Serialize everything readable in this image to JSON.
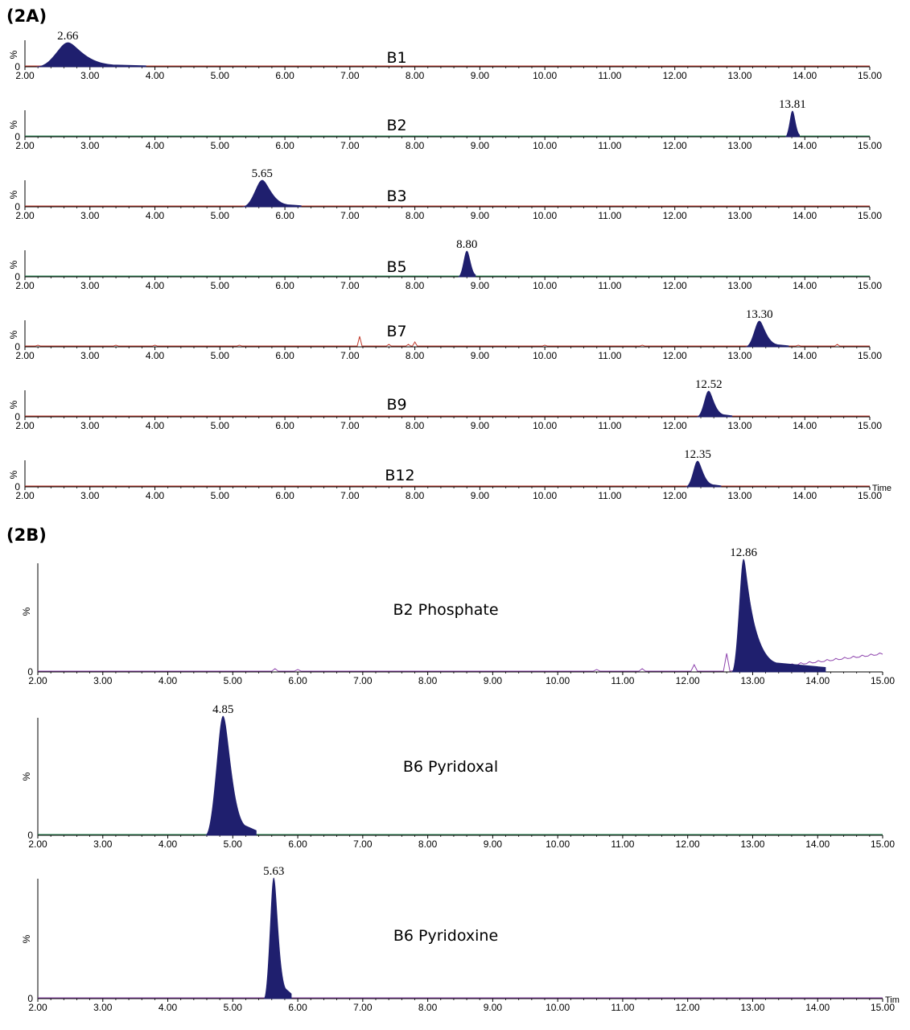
{
  "panels": [
    {
      "label": "(2A)"
    },
    {
      "label": "(2B)"
    }
  ],
  "chart_data": [
    {
      "type": "line",
      "panel": "(2A)",
      "series": [
        {
          "name": "B1",
          "peak": 2.66,
          "peak_label": "2.66"
        }
      ],
      "xlim": [
        2.0,
        15.0
      ],
      "ylabel": "%",
      "ytick": "0",
      "x_ticks": [
        "2.00",
        "3.00",
        "4.00",
        "5.00",
        "6.00",
        "7.00",
        "8.00",
        "9.00",
        "10.00",
        "11.00",
        "12.00",
        "13.00",
        "14.00",
        "15.00"
      ],
      "xlabel": ""
    },
    {
      "type": "line",
      "panel": "(2A)",
      "series": [
        {
          "name": "B2",
          "peak": 13.81,
          "peak_label": "13.81"
        }
      ],
      "xlim": [
        2.0,
        15.0
      ],
      "ylabel": "%",
      "ytick": "0",
      "x_ticks": [
        "2.00",
        "3.00",
        "4.00",
        "5.00",
        "6.00",
        "7.00",
        "8.00",
        "9.00",
        "10.00",
        "11.00",
        "12.00",
        "13.00",
        "14.00",
        "15.00"
      ],
      "xlabel": ""
    },
    {
      "type": "line",
      "panel": "(2A)",
      "series": [
        {
          "name": "B3",
          "peak": 5.65,
          "peak_label": "5.65"
        }
      ],
      "xlim": [
        2.0,
        15.0
      ],
      "ylabel": "%",
      "ytick": "0",
      "x_ticks": [
        "2.00",
        "3.00",
        "4.00",
        "5.00",
        "6.00",
        "7.00",
        "8.00",
        "9.00",
        "10.00",
        "11.00",
        "12.00",
        "13.00",
        "14.00",
        "15.00"
      ],
      "xlabel": ""
    },
    {
      "type": "line",
      "panel": "(2A)",
      "series": [
        {
          "name": "B5",
          "peak": 8.8,
          "peak_label": "8.80"
        }
      ],
      "xlim": [
        2.0,
        15.0
      ],
      "ylabel": "%",
      "ytick": "0",
      "x_ticks": [
        "2.00",
        "3.00",
        "4.00",
        "5.00",
        "6.00",
        "7.00",
        "8.00",
        "9.00",
        "10.00",
        "11.00",
        "12.00",
        "13.00",
        "14.00",
        "15.00"
      ],
      "xlabel": ""
    },
    {
      "type": "line",
      "panel": "(2A)",
      "series": [
        {
          "name": "B7",
          "peak": 13.3,
          "peak_label": "13.30"
        }
      ],
      "xlim": [
        2.0,
        15.0
      ],
      "ylabel": "%",
      "ytick": "0",
      "x_ticks": [
        "2.00",
        "3.00",
        "4.00",
        "5.00",
        "6.00",
        "7.00",
        "8.00",
        "9.00",
        "10.00",
        "11.00",
        "12.00",
        "13.00",
        "14.00",
        "15.00"
      ],
      "xlabel": ""
    },
    {
      "type": "line",
      "panel": "(2A)",
      "series": [
        {
          "name": "B9",
          "peak": 12.52,
          "peak_label": "12.52"
        }
      ],
      "xlim": [
        2.0,
        15.0
      ],
      "ylabel": "%",
      "ytick": "0",
      "x_ticks": [
        "2.00",
        "3.00",
        "4.00",
        "5.00",
        "6.00",
        "7.00",
        "8.00",
        "9.00",
        "10.00",
        "11.00",
        "12.00",
        "13.00",
        "14.00",
        "15.00"
      ],
      "xlabel": ""
    },
    {
      "type": "line",
      "panel": "(2A)",
      "series": [
        {
          "name": "B12",
          "peak": 12.35,
          "peak_label": "12.35"
        }
      ],
      "xlim": [
        2.0,
        15.0
      ],
      "ylabel": "%",
      "ytick": "0",
      "x_ticks": [
        "2.00",
        "3.00",
        "4.00",
        "5.00",
        "6.00",
        "7.00",
        "8.00",
        "9.00",
        "10.00",
        "11.00",
        "12.00",
        "13.00",
        "14.00",
        "15.00"
      ],
      "xlabel": "Time"
    },
    {
      "type": "line",
      "panel": "(2B)",
      "series": [
        {
          "name": "B2 Phosphate",
          "peak": 12.86,
          "peak_label": "12.86"
        }
      ],
      "xlim": [
        2.0,
        15.0
      ],
      "ylabel": "%",
      "ytick": "0",
      "x_ticks": [
        "2.00",
        "3.00",
        "4.00",
        "5.00",
        "6.00",
        "7.00",
        "8.00",
        "9.00",
        "10.00",
        "11.00",
        "12.00",
        "13.00",
        "14.00",
        "15.00"
      ],
      "xlabel": ""
    },
    {
      "type": "line",
      "panel": "(2B)",
      "series": [
        {
          "name": "B6 Pyridoxal",
          "peak": 4.85,
          "peak_label": "4.85"
        }
      ],
      "xlim": [
        2.0,
        15.0
      ],
      "ylabel": "%",
      "ytick": "0",
      "x_ticks": [
        "2.00",
        "3.00",
        "4.00",
        "5.00",
        "6.00",
        "7.00",
        "8.00",
        "9.00",
        "10.00",
        "11.00",
        "12.00",
        "13.00",
        "14.00",
        "15.00"
      ],
      "xlabel": ""
    },
    {
      "type": "line",
      "panel": "(2B)",
      "series": [
        {
          "name": "B6 Pyridoxine",
          "peak": 5.63,
          "peak_label": "5.63"
        }
      ],
      "xlim": [
        2.0,
        15.0
      ],
      "ylabel": "%",
      "ytick": "0",
      "x_ticks": [
        "2.00",
        "3.00",
        "4.00",
        "5.00",
        "6.00",
        "7.00",
        "8.00",
        "9.00",
        "10.00",
        "11.00",
        "12.00",
        "13.00",
        "14.00",
        "15.00"
      ],
      "xlabel": "Tim"
    }
  ],
  "colors": {
    "peak_fill": "#1f1f6e",
    "baseline_red": "#c0392b",
    "baseline_green": "#2e8b57",
    "baseline_purple": "#8e44ad",
    "axis": "#000000"
  }
}
